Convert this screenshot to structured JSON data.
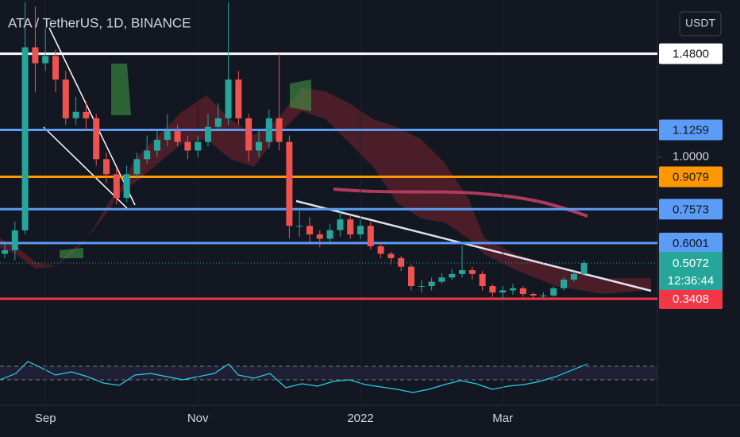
{
  "chart_data": {
    "type": "candlestick",
    "title": "ATA / TetherUS, 1D, BINANCE",
    "y_axis_label": "USDT",
    "categories": [
      null,
      null,
      null,
      null,
      "Sep",
      null,
      null,
      null,
      null,
      null,
      null,
      null,
      null,
      null,
      null,
      null,
      null,
      null,
      null,
      "Nov",
      null,
      null,
      null,
      null,
      null,
      null,
      null,
      null,
      null,
      null,
      null,
      null,
      null,
      null,
      null,
      "2022",
      null,
      null,
      null,
      null,
      null,
      null,
      null,
      null,
      null,
      null,
      null,
      null,
      null,
      "Mar",
      null,
      null,
      null,
      null,
      null,
      null,
      null,
      null,
      null,
      null,
      null,
      null,
      null,
      null,
      null
    ],
    "open": [
      0.55,
      0.567,
      0.659,
      1.51,
      1.436,
      1.47,
      1.36,
      1.18,
      1.21,
      1.18,
      0.99,
      0.92,
      0.81,
      0.92,
      0.99,
      1.03,
      1.08,
      1.12,
      1.07,
      1.03,
      1.07,
      1.14,
      1.18,
      1.36,
      1.18,
      1.03,
      1.07,
      1.18,
      1.07,
      0.68,
      0.68,
      0.64,
      0.62,
      0.66,
      0.71,
      0.64,
      0.68,
      0.585,
      0.55,
      0.53,
      0.49,
      0.4,
      0.4,
      0.42,
      0.44,
      0.456,
      0.474,
      0.456,
      0.4,
      0.37,
      0.38,
      0.39,
      0.363,
      0.356,
      0.356,
      0.39,
      0.43,
      0.456,
      null,
      null,
      null,
      null,
      null,
      null,
      null
    ],
    "high": [
      0.6,
      0.7,
      1.72,
      1.7,
      1.6,
      1.5,
      1.4,
      1.28,
      1.26,
      1.2,
      1.02,
      0.95,
      0.96,
      1.02,
      1.1,
      1.12,
      1.2,
      1.15,
      1.1,
      1.1,
      1.2,
      1.25,
      1.72,
      1.4,
      1.2,
      1.12,
      1.22,
      1.48,
      1.1,
      0.76,
      0.72,
      0.66,
      0.69,
      0.76,
      0.73,
      0.71,
      0.7,
      0.6,
      0.56,
      0.54,
      0.5,
      0.43,
      0.44,
      0.46,
      0.48,
      0.59,
      0.49,
      0.47,
      0.41,
      0.4,
      0.41,
      0.4,
      0.37,
      0.37,
      0.4,
      0.44,
      0.47,
      0.52,
      null,
      null,
      null,
      null,
      null,
      null,
      null
    ],
    "low": [
      0.53,
      0.52,
      0.64,
      1.3,
      1.4,
      1.3,
      1.15,
      1.15,
      1.12,
      0.96,
      0.88,
      0.78,
      0.79,
      0.9,
      0.97,
      1.0,
      1.05,
      1.05,
      0.99,
      1.0,
      1.05,
      1.12,
      1.15,
      1.15,
      0.98,
      1.0,
      1.04,
      1.03,
      0.62,
      0.63,
      0.6,
      0.58,
      0.6,
      0.63,
      0.62,
      0.62,
      0.57,
      0.53,
      0.5,
      0.47,
      0.38,
      0.37,
      0.38,
      0.41,
      0.43,
      0.44,
      0.43,
      0.38,
      0.35,
      0.34,
      0.36,
      0.35,
      0.34,
      0.345,
      0.35,
      0.38,
      0.42,
      0.45,
      null,
      null,
      null,
      null,
      null,
      null,
      null
    ],
    "close": [
      0.567,
      0.659,
      1.51,
      1.436,
      1.47,
      1.36,
      1.18,
      1.21,
      1.18,
      0.99,
      0.92,
      0.81,
      0.92,
      0.99,
      1.03,
      1.08,
      1.12,
      1.07,
      1.03,
      1.07,
      1.14,
      1.18,
      1.36,
      1.18,
      1.03,
      1.07,
      1.18,
      1.07,
      0.68,
      0.68,
      0.64,
      0.62,
      0.66,
      0.71,
      0.64,
      0.68,
      0.585,
      0.55,
      0.53,
      0.49,
      0.4,
      0.4,
      0.42,
      0.44,
      0.456,
      0.474,
      0.456,
      0.4,
      0.37,
      0.38,
      0.39,
      0.363,
      0.356,
      0.356,
      0.39,
      0.43,
      0.456,
      0.507,
      null,
      null,
      null,
      null,
      null,
      null,
      null
    ],
    "up_color": "#26a69a",
    "down_color": "#ef5350",
    "ylim": [
      0.16,
      1.73
    ],
    "yticks": [
      {
        "value": 1,
        "label": "1.0000"
      }
    ],
    "levels": [
      {
        "value": 1.48,
        "label": "1.4800",
        "color": "#ffffff",
        "text_color": "#131722"
      },
      {
        "value": 1.1259,
        "label": "1.1259",
        "color": "#5b9cf6",
        "text_color": "#131722"
      },
      {
        "value": 0.9079,
        "label": "0.9079",
        "color": "#ff9800",
        "text_color": "#131722"
      },
      {
        "value": 0.7573,
        "label": "0.7573",
        "color": "#5b9cf6",
        "text_color": "#131722"
      },
      {
        "value": 0.6001,
        "label": "0.6001",
        "color": "#5b9cf6",
        "text_color": "#131722"
      },
      {
        "value": 0.3408,
        "label": "0.3408",
        "color": "#f23645",
        "text_color": "#ffffff"
      }
    ],
    "last_price": {
      "value": 0.5072,
      "label": "0.5072",
      "countdown": "12:36:44",
      "color": "#26a69a",
      "text_color": "#ffffff"
    }
  }
}
